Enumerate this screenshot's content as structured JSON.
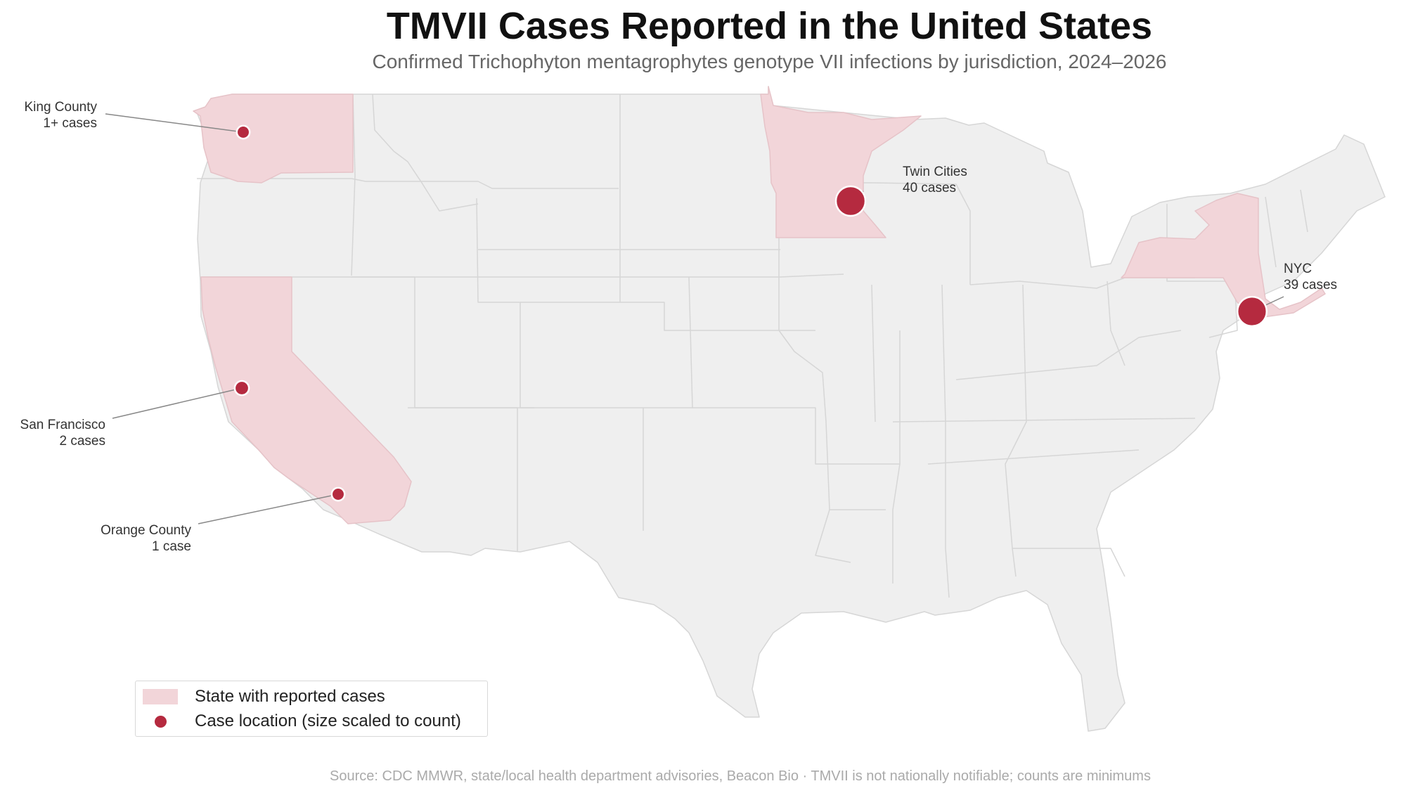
{
  "title": "TMVII Cases Reported in the United States",
  "subtitle": "Confirmed Trichophyton mentagrophytes genotype VII infections by jurisdiction, 2024–2026",
  "colors": {
    "highlight_state": "#f2d5d9",
    "other_state": "#efefef",
    "state_border": "#d6d6d6",
    "case_marker": "#b52a3f",
    "leader_line": "#888888"
  },
  "highlighted_states": [
    "Washington",
    "California",
    "Minnesota",
    "New York"
  ],
  "cases": [
    {
      "name": "King County",
      "count_label": "1+ cases",
      "count": 1
    },
    {
      "name": "San Francisco",
      "count_label": "2 cases",
      "count": 2
    },
    {
      "name": "Orange County",
      "count_label": "1 case",
      "count": 1
    },
    {
      "name": "Twin Cities",
      "count_label": "40 cases",
      "count": 40
    },
    {
      "name": "NYC",
      "count_label": "39 cases",
      "count": 39
    }
  ],
  "legend": {
    "states_label": "State with reported cases",
    "marker_label": "Case location (size scaled to count)"
  },
  "source": "Source: CDC MMWR, state/local health department advisories, Beacon Bio  ·  TMVII is not nationally notifiable; counts are minimums"
}
